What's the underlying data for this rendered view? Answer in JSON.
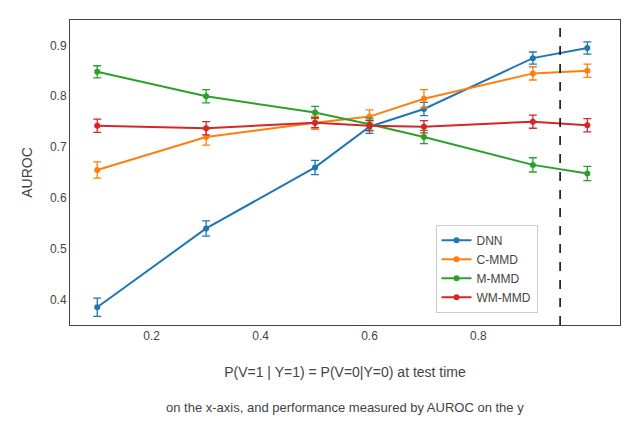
{
  "chart_data": {
    "type": "line",
    "x_label": "P(V=1 | Y=1) = P(V=0|Y=0) at test time",
    "y_label": "AUROC",
    "caption": "on the x-axis, and performance measured by AUROC on the y",
    "x": [
      0.1,
      0.3,
      0.5,
      0.6,
      0.7,
      0.9,
      1.0
    ],
    "series": [
      {
        "name": "DNN",
        "color": "#1f77b4",
        "marker": "circle",
        "line_style": "solid",
        "values": [
          0.385,
          0.54,
          0.66,
          0.74,
          0.775,
          0.875,
          0.895
        ],
        "errors": [
          0.018,
          0.015,
          0.014,
          0.013,
          0.013,
          0.012,
          0.012
        ]
      },
      {
        "name": "C-MMD",
        "color": "#ff7f0e",
        "marker": "circle",
        "line_style": "solid",
        "values": [
          0.655,
          0.72,
          0.748,
          0.76,
          0.795,
          0.845,
          0.85
        ],
        "errors": [
          0.016,
          0.016,
          0.013,
          0.013,
          0.018,
          0.013,
          0.013
        ]
      },
      {
        "name": "M-MMD",
        "color": "#2ca02c",
        "marker": "circle",
        "line_style": "solid",
        "values": [
          0.848,
          0.8,
          0.768,
          0.745,
          0.72,
          0.665,
          0.648
        ],
        "errors": [
          0.012,
          0.013,
          0.012,
          0.012,
          0.013,
          0.014,
          0.014
        ]
      },
      {
        "name": "WM-MMD",
        "color": "#d62728",
        "marker": "circle",
        "line_style": "solid",
        "values": [
          0.742,
          0.737,
          0.748,
          0.742,
          0.74,
          0.75,
          0.743
        ],
        "errors": [
          0.013,
          0.013,
          0.01,
          0.01,
          0.012,
          0.013,
          0.013
        ]
      }
    ],
    "vline": {
      "x": 0.95,
      "color": "#000000",
      "line_style": "dashed"
    },
    "xlim": [
      0.05,
      1.06
    ],
    "ylim": [
      0.35,
      0.95
    ],
    "xticks": [
      0.2,
      0.4,
      0.6,
      0.8
    ],
    "yticks": [
      0.4,
      0.5,
      0.6,
      0.7,
      0.8,
      0.9
    ],
    "legend": "lower right",
    "grid": false
  }
}
